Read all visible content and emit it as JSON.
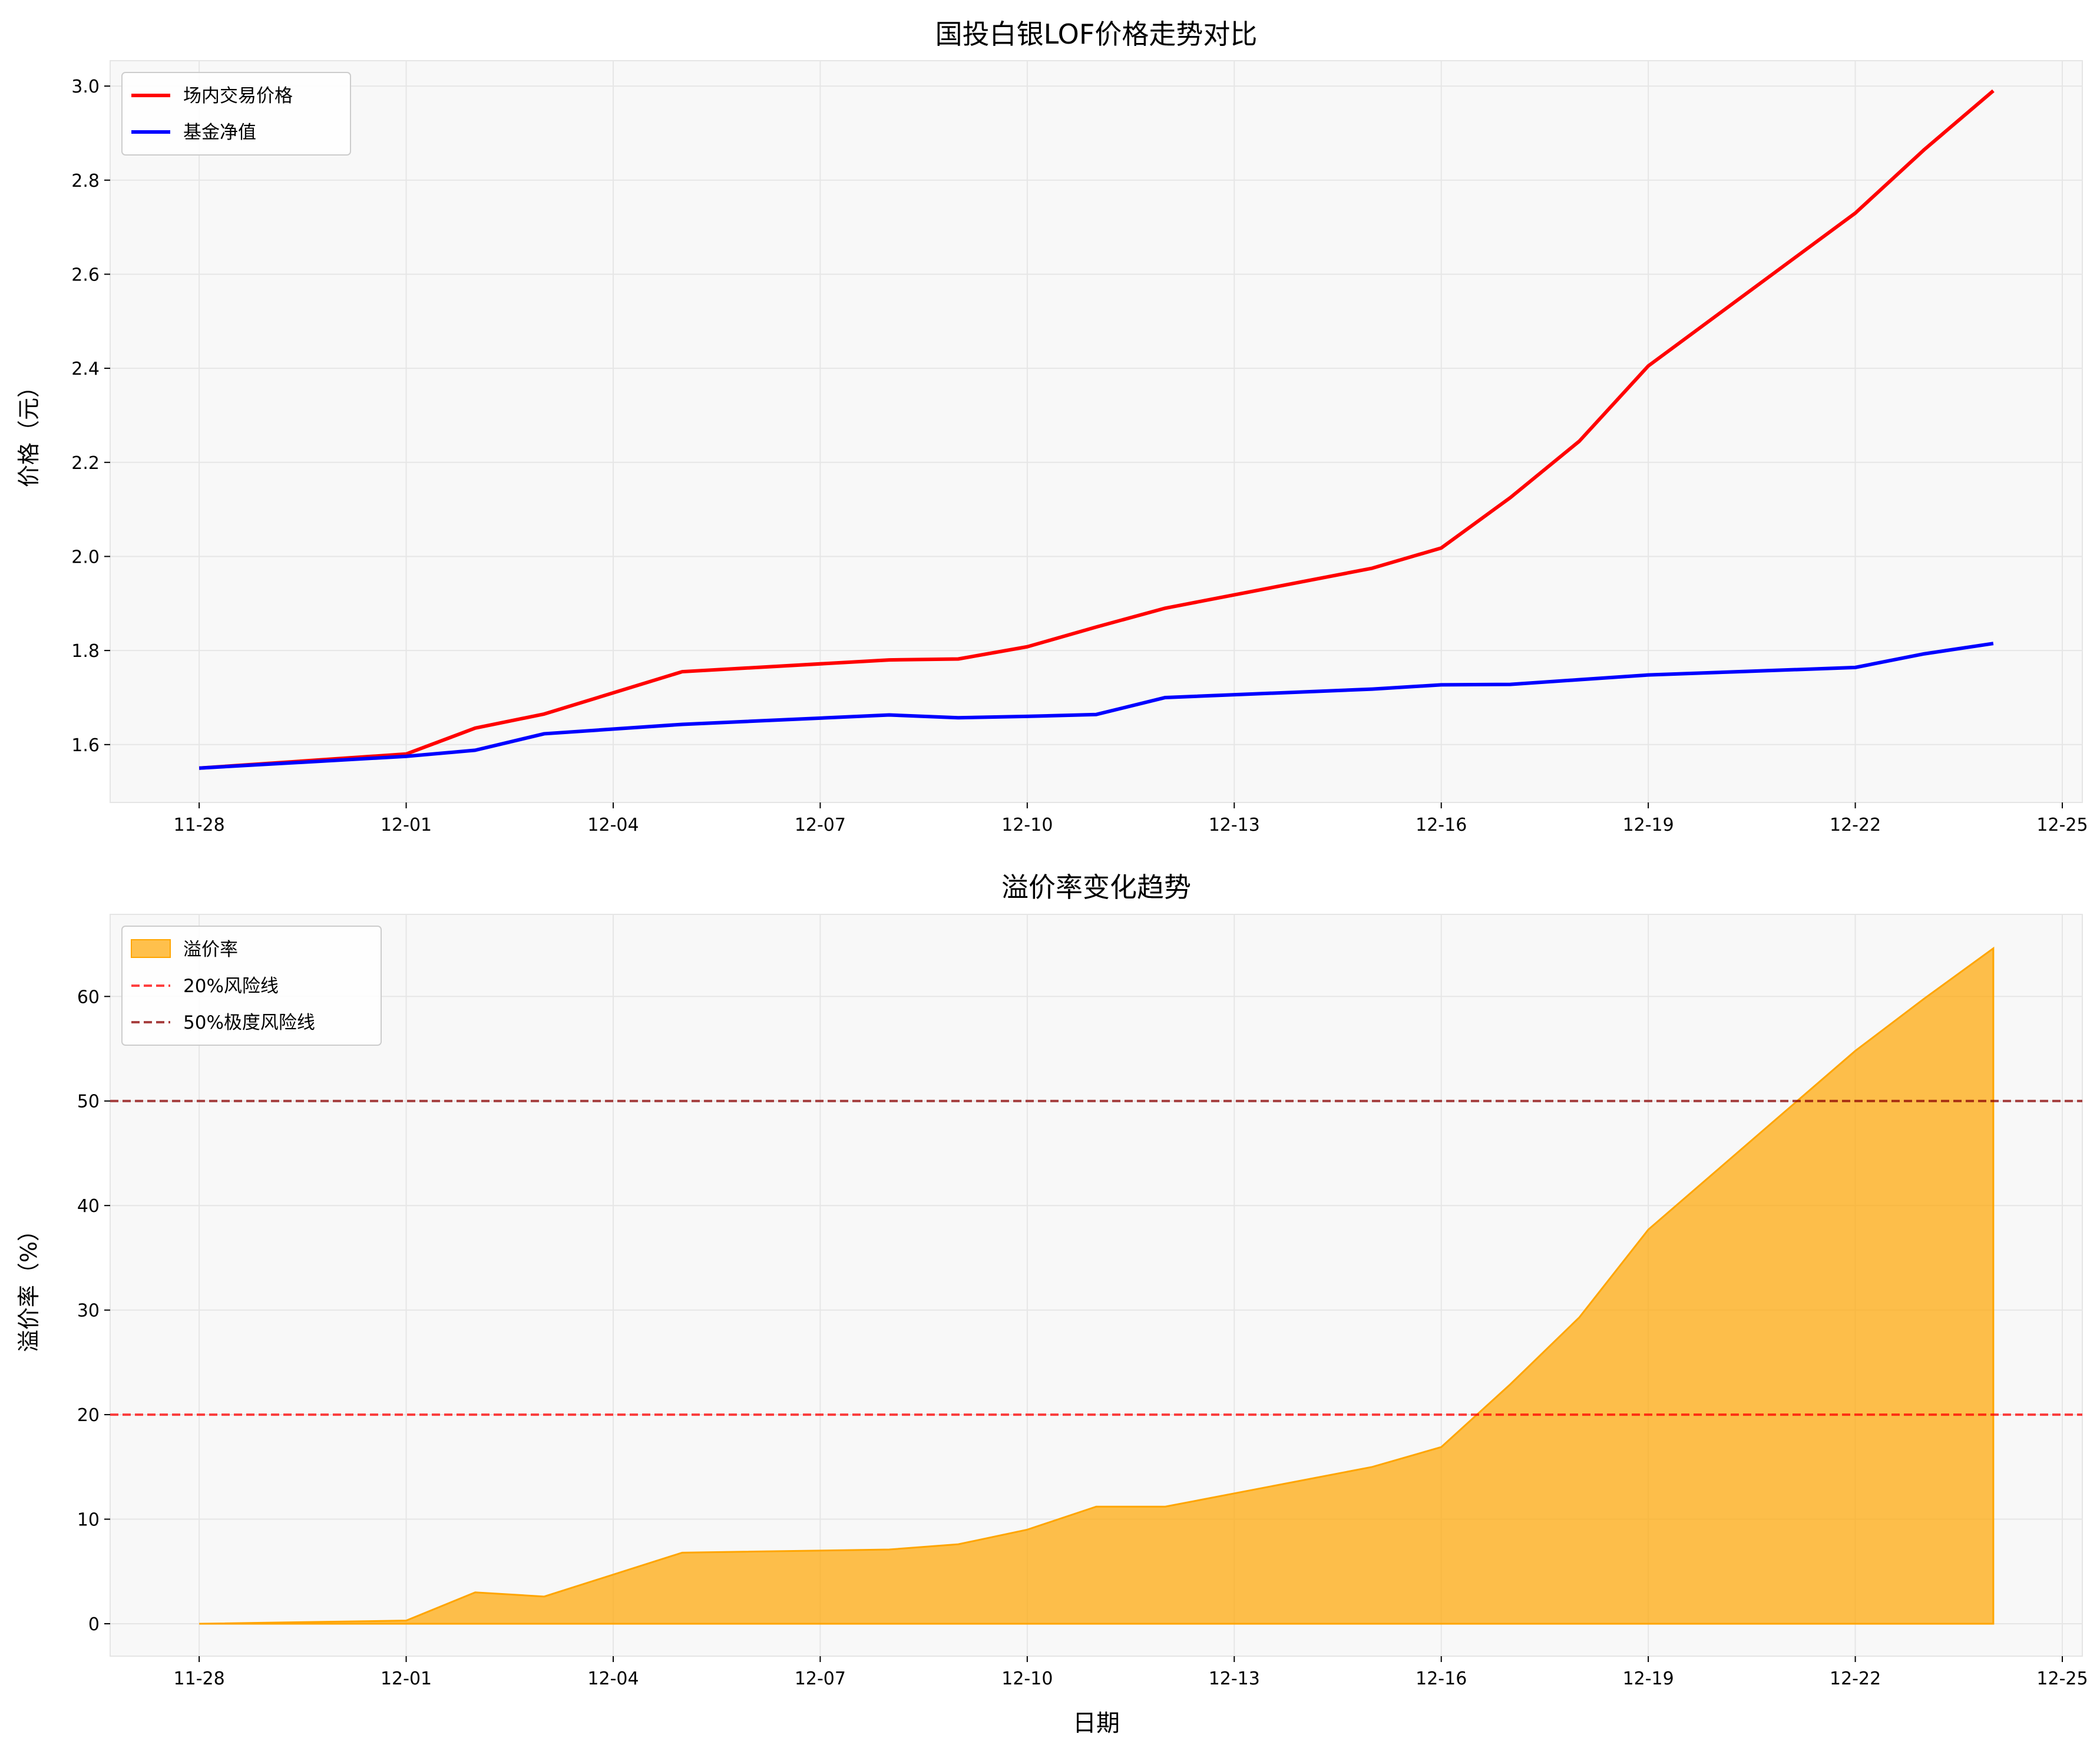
{
  "chart_data": [
    {
      "type": "line",
      "title": "国投白银LOF价格走势对比",
      "xlabel": "",
      "ylabel": "价格（元）",
      "x": [
        "11-28",
        "12-01",
        "12-02",
        "12-03",
        "12-05",
        "12-08",
        "12-09",
        "12-10",
        "12-11",
        "12-12",
        "12-15",
        "12-16",
        "12-17",
        "12-18",
        "12-19",
        "12-22",
        "12-23",
        "12-24"
      ],
      "x_ticks": [
        "11-28",
        "12-01",
        "12-04",
        "12-07",
        "12-10",
        "12-13",
        "12-16",
        "12-19",
        "12-22",
        "12-25"
      ],
      "y_ticks": [
        "1.6",
        "1.8",
        "2.0",
        "2.2",
        "2.4",
        "2.6",
        "2.8",
        "3.0"
      ],
      "ylim": [
        1.477,
        3.054
      ],
      "grid": true,
      "legend": "top-left",
      "series": [
        {
          "name": "场内交易价格",
          "color": "#ff0000",
          "values": [
            1.55,
            1.58,
            1.635,
            1.665,
            1.755,
            1.78,
            1.782,
            1.808,
            1.85,
            1.89,
            1.975,
            2.018,
            2.125,
            2.245,
            2.405,
            2.73,
            2.865,
            2.99
          ]
        },
        {
          "name": "基金净值",
          "color": "#0000ff",
          "values": [
            1.55,
            1.575,
            1.588,
            1.623,
            1.643,
            1.663,
            1.657,
            1.66,
            1.664,
            1.7,
            1.718,
            1.727,
            1.728,
            1.738,
            1.748,
            1.764,
            1.793,
            1.815
          ]
        }
      ]
    },
    {
      "type": "area",
      "title": "溢价率变化趋势",
      "xlabel": "日期",
      "ylabel": "溢价率（%）",
      "x": [
        "11-28",
        "12-01",
        "12-02",
        "12-03",
        "12-05",
        "12-08",
        "12-09",
        "12-10",
        "12-11",
        "12-12",
        "12-15",
        "12-16",
        "12-17",
        "12-18",
        "12-19",
        "12-22",
        "12-23",
        "12-24"
      ],
      "x_ticks": [
        "11-28",
        "12-01",
        "12-04",
        "12-07",
        "12-10",
        "12-13",
        "12-16",
        "12-19",
        "12-22",
        "12-25"
      ],
      "y_ticks": [
        "0",
        "10",
        "20",
        "30",
        "40",
        "50",
        "60"
      ],
      "ylim": [
        -3.1,
        67.85
      ],
      "grid": true,
      "legend": "top-left",
      "series": [
        {
          "name": "溢价率",
          "color": "#ffa500",
          "values": [
            0,
            0.3,
            3.0,
            2.6,
            6.8,
            7.1,
            7.6,
            9.0,
            11.2,
            11.2,
            15.0,
            16.9,
            22.9,
            29.3,
            37.7,
            54.8,
            59.8,
            64.6
          ]
        }
      ],
      "reference_lines": [
        {
          "name": "20%风险线",
          "value": 20,
          "color": "#ff0000"
        },
        {
          "name": "50%极度风险线",
          "value": 50,
          "color": "#8b0000"
        }
      ]
    }
  ]
}
